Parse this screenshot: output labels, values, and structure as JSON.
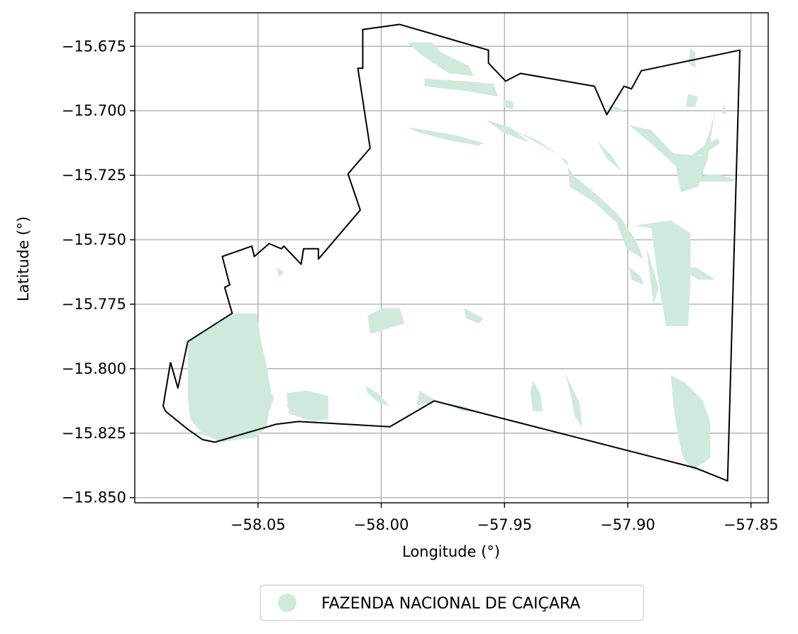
{
  "chart_data": {
    "type": "map",
    "xlabel": "Longitude (°)",
    "ylabel": "Latitude (°)",
    "xlim": [
      -58.1,
      -57.843
    ],
    "ylim": [
      -15.852,
      -15.662
    ],
    "grid": true,
    "x_ticks": [
      {
        "value": -58.05,
        "label": "−58.05"
      },
      {
        "value": -58.0,
        "label": "−58.00"
      },
      {
        "value": -57.95,
        "label": "−57.95"
      },
      {
        "value": -57.9,
        "label": "−57.90"
      },
      {
        "value": -57.85,
        "label": "−57.85"
      }
    ],
    "y_ticks": [
      {
        "value": -15.675,
        "label": "−15.675"
      },
      {
        "value": -15.7,
        "label": "−15.700"
      },
      {
        "value": -15.725,
        "label": "−15.725"
      },
      {
        "value": -15.75,
        "label": "−15.750"
      },
      {
        "value": -15.775,
        "label": "−15.775"
      },
      {
        "value": -15.8,
        "label": "−15.800"
      },
      {
        "value": -15.825,
        "label": "−15.825"
      },
      {
        "value": -15.85,
        "label": "−15.850"
      }
    ],
    "legend": {
      "position": "bottom-center",
      "entries": [
        {
          "label": "FAZENDA NACIONAL DE CAIÇARA",
          "color": "#cfeadd"
        }
      ]
    },
    "boundary": {
      "color": "#000000",
      "coords": [
        [
          -58.0855,
          -15.7975
        ],
        [
          -58.0825,
          -15.8075
        ],
        [
          -58.0785,
          -15.7895
        ],
        [
          -58.0605,
          -15.7785
        ],
        [
          -58.0635,
          -15.7685
        ],
        [
          -58.0615,
          -15.7675
        ],
        [
          -58.0645,
          -15.7565
        ],
        [
          -58.0525,
          -15.7525
        ],
        [
          -58.0515,
          -15.7565
        ],
        [
          -58.0455,
          -15.7515
        ],
        [
          -58.0405,
          -15.7535
        ],
        [
          -58.0395,
          -15.7525
        ],
        [
          -58.0325,
          -15.7595
        ],
        [
          -58.0315,
          -15.7535
        ],
        [
          -58.0255,
          -15.7535
        ],
        [
          -58.0255,
          -15.7575
        ],
        [
          -58.0085,
          -15.7385
        ],
        [
          -58.0135,
          -15.7245
        ],
        [
          -58.0045,
          -15.7145
        ],
        [
          -58.0095,
          -15.6835
        ],
        [
          -58.0075,
          -15.6835
        ],
        [
          -58.0075,
          -15.6685
        ],
        [
          -57.9925,
          -15.6665
        ],
        [
          -57.9565,
          -15.6765
        ],
        [
          -57.9565,
          -15.6815
        ],
        [
          -57.9495,
          -15.6885
        ],
        [
          -57.9435,
          -15.6855
        ],
        [
          -57.9135,
          -15.6905
        ],
        [
          -57.9085,
          -15.7015
        ],
        [
          -57.9015,
          -15.6905
        ],
        [
          -57.8985,
          -15.6915
        ],
        [
          -57.8945,
          -15.6845
        ],
        [
          -57.8545,
          -15.6765
        ],
        [
          -57.8595,
          -15.8435
        ],
        [
          -57.8725,
          -15.8385
        ],
        [
          -57.9785,
          -15.8125
        ],
        [
          -57.9965,
          -15.8225
        ],
        [
          -58.0335,
          -15.8205
        ],
        [
          -58.0425,
          -15.8215
        ],
        [
          -58.0675,
          -15.8285
        ],
        [
          -58.0725,
          -15.8275
        ],
        [
          -58.0785,
          -15.8235
        ],
        [
          -58.0875,
          -15.8165
        ],
        [
          -58.0885,
          -15.8145
        ],
        [
          -58.0855,
          -15.7975
        ]
      ]
    },
    "areas": [
      {
        "coords": [
          [
            -58.0505,
            -15.7785
          ],
          [
            -58.0485,
            -15.7905
          ],
          [
            -58.0465,
            -15.7985
          ],
          [
            -58.0445,
            -15.8105
          ],
          [
            -58.0465,
            -15.8225
          ],
          [
            -58.0505,
            -15.8265
          ],
          [
            -58.0645,
            -15.8285
          ],
          [
            -58.0725,
            -15.8255
          ],
          [
            -58.0775,
            -15.8195
          ],
          [
            -58.0785,
            -15.8105
          ],
          [
            -58.0785,
            -15.7895
          ],
          [
            -58.0605,
            -15.7785
          ]
        ]
      },
      {
        "coords": [
          [
            -58.0475,
            -15.8025
          ],
          [
            -58.0435,
            -15.8115
          ],
          [
            -58.0455,
            -15.8165
          ],
          [
            -58.0495,
            -15.8115
          ]
        ]
      },
      {
        "coords": [
          [
            -58.0385,
            -15.8095
          ],
          [
            -58.0305,
            -15.8085
          ],
          [
            -58.0215,
            -15.8105
          ],
          [
            -58.0215,
            -15.8195
          ],
          [
            -58.0275,
            -15.8205
          ],
          [
            -58.0375,
            -15.8175
          ]
        ]
      },
      {
        "coords": [
          [
            -57.9895,
            -15.6735
          ],
          [
            -57.9795,
            -15.6735
          ],
          [
            -57.9755,
            -15.6775
          ],
          [
            -57.9645,
            -15.6825
          ],
          [
            -57.9625,
            -15.6865
          ],
          [
            -57.9725,
            -15.6855
          ],
          [
            -57.9835,
            -15.6785
          ]
        ]
      },
      {
        "coords": [
          [
            -57.9825,
            -15.6875
          ],
          [
            -57.9665,
            -15.6885
          ],
          [
            -57.9545,
            -15.6895
          ],
          [
            -57.9525,
            -15.6945
          ],
          [
            -57.9645,
            -15.6925
          ],
          [
            -57.9825,
            -15.6905
          ]
        ]
      },
      {
        "coords": [
          [
            -57.9465,
            -15.7075
          ],
          [
            -57.9365,
            -15.7115
          ],
          [
            -57.9245,
            -15.7195
          ],
          [
            -57.9235,
            -15.7295
          ],
          [
            -57.9135,
            -15.7355
          ],
          [
            -57.9045,
            -15.7435
          ],
          [
            -57.9005,
            -15.7535
          ],
          [
            -57.8935,
            -15.7575
          ],
          [
            -57.8965,
            -15.7505
          ],
          [
            -57.9035,
            -15.7405
          ],
          [
            -57.9125,
            -15.7325
          ],
          [
            -57.9215,
            -15.7255
          ],
          [
            -57.9275,
            -15.7175
          ],
          [
            -57.9385,
            -15.7115
          ]
        ]
      },
      {
        "coords": [
          [
            -57.8975,
            -15.7445
          ],
          [
            -57.8905,
            -15.7455
          ],
          [
            -57.8875,
            -15.7665
          ],
          [
            -57.8845,
            -15.7835
          ],
          [
            -57.8755,
            -15.7835
          ],
          [
            -57.8745,
            -15.7665
          ],
          [
            -57.8745,
            -15.7475
          ],
          [
            -57.8825,
            -15.7425
          ]
        ]
      },
      {
        "coords": [
          [
            -57.8995,
            -15.7055
          ],
          [
            -57.8895,
            -15.7135
          ],
          [
            -57.8805,
            -15.7215
          ],
          [
            -57.8785,
            -15.7315
          ],
          [
            -57.8715,
            -15.7295
          ],
          [
            -57.8675,
            -15.7185
          ],
          [
            -57.8645,
            -15.6995
          ],
          [
            -57.8625,
            -15.6915
          ],
          [
            -57.8665,
            -15.7075
          ],
          [
            -57.8705,
            -15.7175
          ],
          [
            -57.8815,
            -15.7165
          ],
          [
            -57.8905,
            -15.7075
          ]
        ]
      },
      {
        "coords": [
          [
            -57.8715,
            -15.7255
          ],
          [
            -57.8645,
            -15.7245
          ],
          [
            -57.8565,
            -15.7265
          ],
          [
            -57.8575,
            -15.7275
          ],
          [
            -57.8705,
            -15.7275
          ]
        ]
      },
      {
        "coords": [
          [
            -57.9895,
            -15.7065
          ],
          [
            -57.9815,
            -15.7075
          ],
          [
            -57.9695,
            -15.7095
          ],
          [
            -57.9585,
            -15.7125
          ],
          [
            -57.9605,
            -15.7135
          ],
          [
            -57.9725,
            -15.7115
          ],
          [
            -57.9845,
            -15.7085
          ]
        ]
      },
      {
        "coords": [
          [
            -57.9575,
            -15.7035
          ],
          [
            -57.9475,
            -15.7065
          ],
          [
            -57.9395,
            -15.7125
          ],
          [
            -57.9505,
            -15.7085
          ]
        ]
      },
      {
        "coords": [
          [
            -57.8925,
            -15.7525
          ],
          [
            -57.8895,
            -15.7755
          ],
          [
            -57.8875,
            -15.7685
          ]
        ]
      },
      {
        "coords": [
          [
            -57.8775,
            -15.7615
          ],
          [
            -57.8715,
            -15.7655
          ],
          [
            -57.8645,
            -15.7655
          ],
          [
            -57.8725,
            -15.7605
          ]
        ]
      },
      {
        "coords": [
          [
            -57.9995,
            -15.7765
          ],
          [
            -57.9925,
            -15.7765
          ],
          [
            -57.9905,
            -15.7825
          ],
          [
            -58.0045,
            -15.7865
          ],
          [
            -58.0055,
            -15.7795
          ]
        ]
      },
      {
        "coords": [
          [
            -58.0425,
            -15.7605
          ],
          [
            -58.0395,
            -15.7625
          ],
          [
            -58.0415,
            -15.7645
          ]
        ]
      },
      {
        "coords": [
          [
            -57.9665,
            -15.7765
          ],
          [
            -57.9585,
            -15.7805
          ],
          [
            -57.9605,
            -15.7825
          ],
          [
            -57.9655,
            -15.7805
          ]
        ]
      },
      {
        "coords": [
          [
            -57.9255,
            -15.8015
          ],
          [
            -57.9195,
            -15.8135
          ],
          [
            -57.9185,
            -15.8225
          ],
          [
            -57.9215,
            -15.8185
          ],
          [
            -57.9235,
            -15.8085
          ]
        ]
      },
      {
        "coords": [
          [
            -57.8825,
            -15.8025
          ],
          [
            -57.8765,
            -15.8055
          ],
          [
            -57.8695,
            -15.8125
          ],
          [
            -57.8665,
            -15.8205
          ],
          [
            -57.8665,
            -15.8345
          ],
          [
            -57.8735,
            -15.8395
          ],
          [
            -57.8775,
            -15.8345
          ],
          [
            -57.8795,
            -15.8265
          ],
          [
            -57.8815,
            -15.8145
          ]
        ]
      },
      {
        "coords": [
          [
            -57.8755,
            -15.7185
          ],
          [
            -57.8685,
            -15.7165
          ],
          [
            -57.8625,
            -15.7125
          ],
          [
            -57.8635,
            -15.7105
          ],
          [
            -57.8705,
            -15.7145
          ]
        ]
      },
      {
        "coords": [
          [
            -57.9125,
            -15.7115
          ],
          [
            -57.9085,
            -15.7185
          ],
          [
            -57.9025,
            -15.7235
          ],
          [
            -57.9065,
            -15.7175
          ]
        ]
      },
      {
        "coords": [
          [
            -58.0065,
            -15.8065
          ],
          [
            -58.0015,
            -15.8095
          ],
          [
            -57.9965,
            -15.8145
          ],
          [
            -58.0005,
            -15.8135
          ],
          [
            -58.0055,
            -15.8095
          ]
        ]
      },
      {
        "coords": [
          [
            -57.9845,
            -15.8085
          ],
          [
            -57.9775,
            -15.8125
          ],
          [
            -57.9855,
            -15.8145
          ]
        ]
      },
      {
        "coords": [
          [
            -57.9505,
            -15.6955
          ],
          [
            -57.9465,
            -15.6965
          ],
          [
            -57.9465,
            -15.6995
          ],
          [
            -57.9505,
            -15.6985
          ]
        ]
      },
      {
        "coords": [
          [
            -57.9095,
            -15.6975
          ],
          [
            -57.9045,
            -15.6985
          ],
          [
            -57.9005,
            -15.7005
          ],
          [
            -57.9055,
            -15.7005
          ]
        ]
      },
      {
        "coords": [
          [
            -57.8755,
            -15.6935
          ],
          [
            -57.8715,
            -15.6945
          ],
          [
            -57.8725,
            -15.6985
          ],
          [
            -57.8765,
            -15.6985
          ]
        ]
      },
      {
        "coords": [
          [
            -57.8615,
            -15.6975
          ],
          [
            -57.8595,
            -15.7005
          ],
          [
            -57.8615,
            -15.7015
          ]
        ]
      },
      {
        "coords": [
          [
            -57.9385,
            -15.8045
          ],
          [
            -57.9355,
            -15.8095
          ],
          [
            -57.9345,
            -15.8165
          ],
          [
            -57.9385,
            -15.8165
          ],
          [
            -57.9395,
            -15.8095
          ]
        ]
      },
      {
        "coords": [
          [
            -57.9725,
            -15.8135
          ],
          [
            -57.9665,
            -15.8145
          ],
          [
            -57.9625,
            -15.8165
          ],
          [
            -57.9675,
            -15.8165
          ]
        ]
      },
      {
        "coords": [
          [
            -57.8995,
            -15.7605
          ],
          [
            -57.8945,
            -15.7645
          ],
          [
            -57.8935,
            -15.7675
          ],
          [
            -57.8985,
            -15.7655
          ]
        ]
      },
      {
        "coords": [
          [
            -58.0625,
            -15.8205
          ],
          [
            -58.0585,
            -15.8225
          ],
          [
            -58.0605,
            -15.8245
          ],
          [
            -58.0645,
            -15.8225
          ]
        ]
      },
      {
        "coords": [
          [
            -58.0365,
            -15.8115
          ],
          [
            -58.0325,
            -15.8135
          ],
          [
            -58.0345,
            -15.8165
          ],
          [
            -58.0385,
            -15.8145
          ]
        ]
      },
      {
        "coords": [
          [
            -57.8745,
            -15.6755
          ],
          [
            -57.8725,
            -15.6775
          ],
          [
            -57.8725,
            -15.6835
          ],
          [
            -57.8755,
            -15.6815
          ]
        ]
      }
    ]
  }
}
